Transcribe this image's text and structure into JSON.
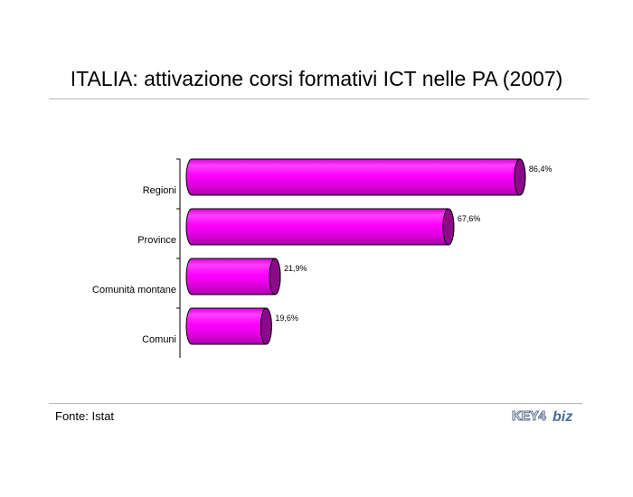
{
  "title": "ITALIA: attivazione corsi formativi ICT nelle PA (2007)",
  "source": "Fonte: Istat",
  "logo": {
    "text_left": "KEY4",
    "text_right": "biz"
  },
  "colors": {
    "bar_face": "#ff00ff",
    "bar_dark": "#990099",
    "bar_cap": "#8a0a8a"
  },
  "chart_data": {
    "type": "bar",
    "orientation": "horizontal",
    "categories": [
      "Regioni",
      "Province",
      "Comunità montane",
      "Comuni"
    ],
    "values": [
      86.4,
      67.6,
      21.9,
      19.6
    ],
    "value_labels": [
      "86,4%",
      "67,6%",
      "21,9%",
      "19,6%"
    ],
    "title": "ITALIA: attivazione corsi formativi ICT nelle PA (2007)",
    "xlim": [
      0,
      100
    ],
    "grid": false,
    "legend": "none"
  }
}
